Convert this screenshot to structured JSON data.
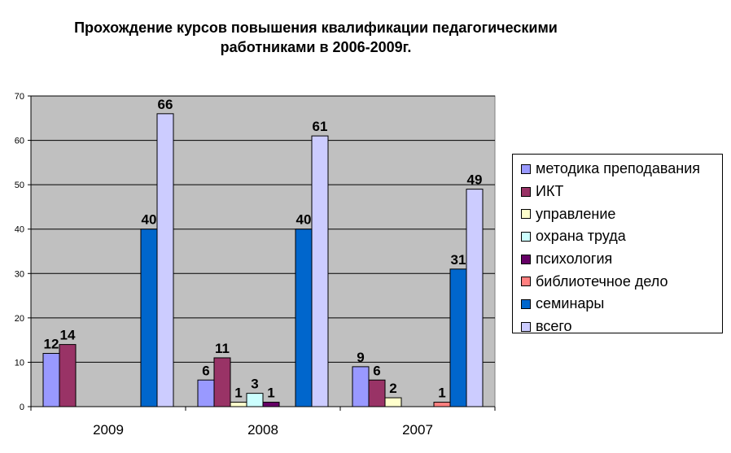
{
  "chart_data": {
    "type": "bar",
    "title_lines": [
      "Прохождение курсов повышения квалификации педагогическими",
      "работниками в 2006-2009г."
    ],
    "categories": [
      "2009",
      "2008",
      "2007"
    ],
    "ylim": [
      0,
      70
    ],
    "yticks": [
      0,
      10,
      20,
      30,
      40,
      50,
      60,
      70
    ],
    "grid": true,
    "legend_position": "right",
    "plot_background": "#C0C0C0",
    "series": [
      {
        "name": "методика преподавания",
        "color": "#9999FF",
        "values": [
          12,
          6,
          9
        ]
      },
      {
        "name": "ИКТ",
        "color": "#993366",
        "values": [
          14,
          11,
          6
        ]
      },
      {
        "name": "управление",
        "color": "#FFFFCC",
        "values": [
          null,
          1,
          2
        ]
      },
      {
        "name": "охрана труда",
        "color": "#CCFFFF",
        "values": [
          null,
          3,
          null
        ]
      },
      {
        "name": "психология",
        "color": "#660066",
        "values": [
          null,
          1,
          null
        ]
      },
      {
        "name": "библиотечное дело",
        "color": "#FF8080",
        "values": [
          null,
          null,
          1
        ]
      },
      {
        "name": "семинары",
        "color": "#0066CC",
        "values": [
          40,
          40,
          31
        ]
      },
      {
        "name": "всего",
        "color": "#CCCCFF",
        "values": [
          66,
          61,
          49
        ]
      }
    ]
  }
}
